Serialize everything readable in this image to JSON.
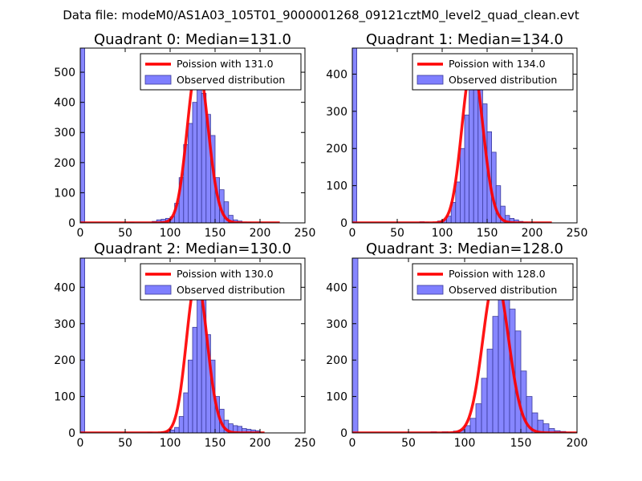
{
  "figure": {
    "suptitle": "Data file: modeM0/AS1A03_105T01_9000001268_09121cztM0_level2_quad_clean.evt"
  },
  "colors": {
    "hist_fill": "#7f7fff",
    "hist_edge": "#3a3a9a",
    "fit_line": "#ff0000",
    "axes": "#000000",
    "background": "#ffffff"
  },
  "chart_data": [
    {
      "type": "bar",
      "title": "Quadrant 0: Median=131.0",
      "median": 131.0,
      "xlim": [
        0,
        250
      ],
      "ylim": [
        0,
        580
      ],
      "xticks": [
        0,
        50,
        100,
        150,
        200,
        250
      ],
      "yticks": [
        0,
        100,
        200,
        300,
        400,
        500
      ],
      "bin_width": 5,
      "legend": [
        "Poission with 131.0",
        "Observed distribution"
      ],
      "legend_loc": "top-right",
      "hist_bins": [
        [
          0,
          580
        ],
        [
          55,
          2
        ],
        [
          80,
          5
        ],
        [
          85,
          10
        ],
        [
          90,
          12
        ],
        [
          95,
          15
        ],
        [
          100,
          20
        ],
        [
          105,
          65
        ],
        [
          110,
          150
        ],
        [
          115,
          260
        ],
        [
          120,
          330
        ],
        [
          125,
          400
        ],
        [
          130,
          480
        ],
        [
          135,
          430
        ],
        [
          140,
          360
        ],
        [
          145,
          290
        ],
        [
          150,
          150
        ],
        [
          155,
          110
        ],
        [
          160,
          70
        ],
        [
          165,
          25
        ],
        [
          170,
          10
        ],
        [
          175,
          6
        ],
        [
          180,
          3
        ],
        [
          185,
          2
        ]
      ],
      "poisson_mean": 131.0,
      "poisson_peak": 530,
      "poisson_xrange": [
        0,
        222
      ]
    },
    {
      "type": "bar",
      "title": "Quadrant 1: Median=134.0",
      "median": 134.0,
      "xlim": [
        0,
        250
      ],
      "ylim": [
        0,
        470
      ],
      "xticks": [
        0,
        50,
        100,
        150,
        200,
        250
      ],
      "yticks": [
        0,
        100,
        200,
        300,
        400
      ],
      "bin_width": 5,
      "legend": [
        "Poission with 134.0",
        "Observed distribution"
      ],
      "legend_loc": "top-right",
      "hist_bins": [
        [
          0,
          470
        ],
        [
          75,
          3
        ],
        [
          80,
          2
        ],
        [
          95,
          5
        ],
        [
          100,
          8
        ],
        [
          105,
          18
        ],
        [
          110,
          55
        ],
        [
          115,
          110
        ],
        [
          120,
          200
        ],
        [
          125,
          290
        ],
        [
          130,
          380
        ],
        [
          135,
          445
        ],
        [
          140,
          400
        ],
        [
          145,
          320
        ],
        [
          150,
          245
        ],
        [
          155,
          190
        ],
        [
          160,
          100
        ],
        [
          165,
          45
        ],
        [
          170,
          20
        ],
        [
          175,
          12
        ],
        [
          180,
          8
        ],
        [
          185,
          4
        ],
        [
          190,
          2
        ]
      ],
      "poisson_mean": 134.0,
      "poisson_peak": 430,
      "poisson_xrange": [
        0,
        222
      ]
    },
    {
      "type": "bar",
      "title": "Quadrant 2: Median=130.0",
      "median": 130.0,
      "xlim": [
        0,
        250
      ],
      "ylim": [
        0,
        480
      ],
      "xticks": [
        0,
        50,
        100,
        150,
        200,
        250
      ],
      "yticks": [
        0,
        100,
        200,
        300,
        400
      ],
      "bin_width": 5,
      "legend": [
        "Poission with 130.0",
        "Observed distribution"
      ],
      "legend_loc": "top-right",
      "hist_bins": [
        [
          0,
          480
        ],
        [
          75,
          2
        ],
        [
          90,
          3
        ],
        [
          95,
          5
        ],
        [
          100,
          8
        ],
        [
          105,
          15
        ],
        [
          110,
          45
        ],
        [
          115,
          110
        ],
        [
          120,
          200
        ],
        [
          125,
          290
        ],
        [
          130,
          390
        ],
        [
          135,
          410
        ],
        [
          140,
          270
        ],
        [
          145,
          200
        ],
        [
          150,
          100
        ],
        [
          155,
          65
        ],
        [
          160,
          35
        ],
        [
          165,
          25
        ],
        [
          170,
          20
        ],
        [
          175,
          18
        ],
        [
          180,
          12
        ],
        [
          185,
          10
        ],
        [
          190,
          8
        ],
        [
          195,
          6
        ]
      ],
      "poisson_mean": 130.0,
      "poisson_peak": 425,
      "poisson_xrange": [
        0,
        205
      ]
    },
    {
      "type": "bar",
      "title": "Quadrant 3: Median=128.0",
      "median": 128.0,
      "xlim": [
        0,
        200
      ],
      "ylim": [
        0,
        480
      ],
      "xticks": [
        0,
        50,
        100,
        150,
        200
      ],
      "yticks": [
        0,
        100,
        200,
        300,
        400
      ],
      "bin_width": 5,
      "legend": [
        "Poission with 128.0",
        "Observed distribution"
      ],
      "legend_loc": "top-right",
      "hist_bins": [
        [
          0,
          480
        ],
        [
          70,
          3
        ],
        [
          80,
          3
        ],
        [
          90,
          5
        ],
        [
          95,
          8
        ],
        [
          100,
          20
        ],
        [
          105,
          40
        ],
        [
          110,
          80
        ],
        [
          115,
          150
        ],
        [
          120,
          230
        ],
        [
          125,
          320
        ],
        [
          130,
          400
        ],
        [
          135,
          430
        ],
        [
          140,
          340
        ],
        [
          145,
          280
        ],
        [
          150,
          170
        ],
        [
          155,
          100
        ],
        [
          160,
          55
        ],
        [
          165,
          35
        ],
        [
          170,
          25
        ],
        [
          175,
          12
        ],
        [
          180,
          6
        ],
        [
          185,
          4
        ],
        [
          190,
          2
        ]
      ],
      "poisson_mean": 128.0,
      "poisson_peak": 430,
      "poisson_xrange": [
        0,
        200
      ]
    }
  ]
}
